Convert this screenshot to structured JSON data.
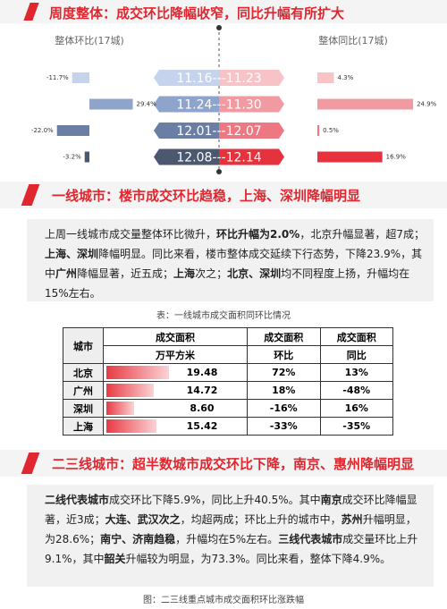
{
  "chart_data": {
    "type": "diverging-bar",
    "title": "周度整体：成交环比降幅收窄，同比升幅有所扩大",
    "categories": [
      "11.16---11.23",
      "11.24---11.30",
      "12.01---12.07",
      "12.08---12.14"
    ],
    "series": [
      {
        "name": "整体环比(17城)",
        "values": [
          -11.7,
          29.4,
          -22.0,
          -3.2
        ],
        "value_labels": [
          "-11.7%",
          "29.4%",
          "-22.0%",
          "-3.2%"
        ],
        "colors": [
          "#c5d3ec",
          "#8fa4cb",
          "#6b7fa5",
          "#4b586f"
        ]
      },
      {
        "name": "整体同比(17城)",
        "values": [
          4.3,
          24.9,
          0.5,
          16.9
        ],
        "value_labels": [
          "4.3%",
          "24.9%",
          "0.5%",
          "16.9%"
        ],
        "colors": [
          "#f7c3c6",
          "#f29aa1",
          "#ee7881",
          "#e5323d"
        ]
      }
    ]
  },
  "section1": {
    "title": "一线城市：楼市成交环比趋稳，上海、深圳降幅明显",
    "paragraph": [
      {
        "t": "上周一线城市成交量整体环比微升，",
        "b": false
      },
      {
        "t": "环比升幅为2.0%",
        "b": true
      },
      {
        "t": "，北京升幅显著，超7成；",
        "b": false
      },
      {
        "t": "上海、深圳",
        "b": true
      },
      {
        "t": "降幅明显。同比来看，楼市整体成交延续下行态势，下降23.9%，其中",
        "b": false
      },
      {
        "t": "广州",
        "b": true
      },
      {
        "t": "降幅显著，近五成；",
        "b": false
      },
      {
        "t": "上海",
        "b": true
      },
      {
        "t": "次之；",
        "b": false
      },
      {
        "t": "北京、深圳",
        "b": true
      },
      {
        "t": "均不同程度上扬，升幅均在15%左右。",
        "b": false
      }
    ],
    "caption": "表：一线城市成交面积同环比情况",
    "table": {
      "header_top": [
        "城市",
        "成交面积",
        "成交面积",
        "成交面积"
      ],
      "header_sub": [
        "万平方米",
        "环比",
        "同比"
      ],
      "rows": [
        [
          "北京",
          19.48,
          "72%",
          "13%"
        ],
        [
          "广州",
          14.72,
          "18%",
          "-48%"
        ],
        [
          "深圳",
          {
            "value": 8.6,
            "label": "8.60"
          },
          "-16%",
          "16%"
        ],
        [
          "上海",
          15.42,
          "-33%",
          "-35%"
        ]
      ]
    }
  },
  "section2": {
    "title": "二三线城市：超半数城市成交环比下降，南京、惠州降幅明显",
    "paragraph": [
      {
        "t": "二线代表城市",
        "b": true
      },
      {
        "t": "成交环比下降5.9%，同比上升40.5%。其中",
        "b": false
      },
      {
        "t": "南京",
        "b": true
      },
      {
        "t": "成交环比降幅显著，近3成；",
        "b": false
      },
      {
        "t": "大连、武汉次之",
        "b": true
      },
      {
        "t": "，均超两成；环比上升的城市中，",
        "b": false
      },
      {
        "t": "苏州",
        "b": true
      },
      {
        "t": "升幅明显，为28.6%；",
        "b": false
      },
      {
        "t": "南宁、济南趋稳",
        "b": true
      },
      {
        "t": "，升幅均在5%左右。",
        "b": false
      },
      {
        "t": "三线代表城市",
        "b": true
      },
      {
        "t": "成交量环比上升9.1%，其中",
        "b": false
      },
      {
        "t": "韶关",
        "b": true
      },
      {
        "t": "升幅较为明显，为73.3%。同比来看，整体下降4.9%。",
        "b": false
      }
    ],
    "caption": "图：二三线重点城市成交面积环比涨跌幅"
  }
}
